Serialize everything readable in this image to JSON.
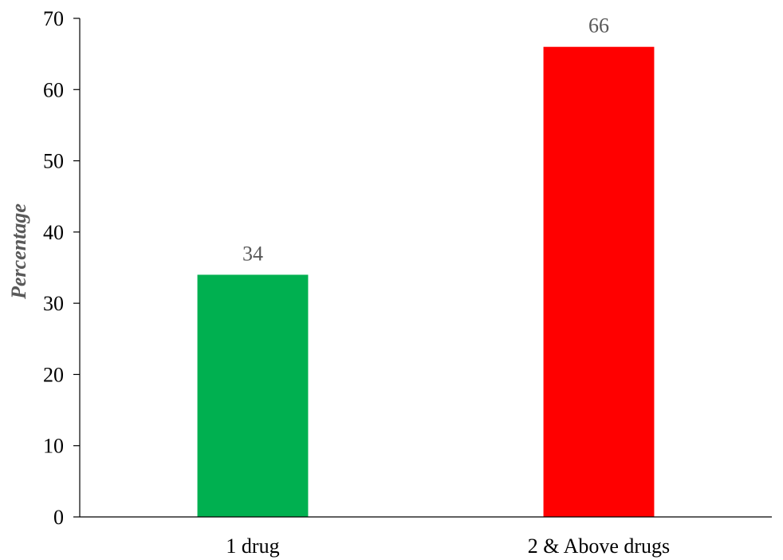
{
  "chart_data": {
    "type": "bar",
    "title": "",
    "xlabel": "",
    "ylabel": "Percentage",
    "ylim": [
      0,
      70
    ],
    "yticks": [
      0,
      10,
      20,
      30,
      40,
      50,
      60,
      70
    ],
    "categories": [
      "1 drug",
      "2 & Above drugs"
    ],
    "values": [
      34,
      66
    ],
    "data_labels": [
      "34",
      "66"
    ],
    "colors": [
      "#00b050",
      "#ff0000"
    ],
    "grid": false,
    "legend": "none"
  }
}
